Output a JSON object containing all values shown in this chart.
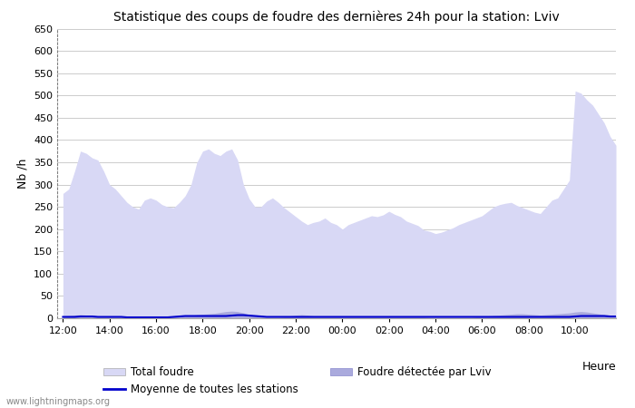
{
  "title": "Statistique des coups de foudre des dernières 24h pour la station: Lviv",
  "ylabel": "Nb /h",
  "xlabel": "Heure",
  "ylim": [
    0,
    650
  ],
  "yticks": [
    0,
    50,
    100,
    150,
    200,
    250,
    300,
    350,
    400,
    450,
    500,
    550,
    600,
    650
  ],
  "xtick_labels": [
    "12:00",
    "14:00",
    "16:00",
    "18:00",
    "20:00",
    "22:00",
    "00:00",
    "02:00",
    "04:00",
    "06:00",
    "08:00",
    "10:00"
  ],
  "bg_color": "#ffffff",
  "plot_bg_color": "#ffffff",
  "grid_color": "#cccccc",
  "total_foudre_color": "#d8d8f5",
  "lviv_color": "#aaaadd",
  "moyenne_color": "#0000cc",
  "watermark": "www.lightningmaps.org",
  "total_foudre_y": [
    280,
    290,
    330,
    375,
    370,
    360,
    355,
    330,
    300,
    290,
    275,
    260,
    250,
    245,
    265,
    270,
    265,
    255,
    250,
    248,
    260,
    275,
    300,
    350,
    375,
    380,
    370,
    365,
    375,
    380,
    355,
    300,
    268,
    250,
    250,
    263,
    270,
    260,
    248,
    238,
    228,
    218,
    210,
    215,
    218,
    225,
    215,
    210,
    200,
    210,
    215,
    220,
    225,
    230,
    228,
    232,
    240,
    233,
    228,
    218,
    213,
    208,
    198,
    195,
    190,
    193,
    198,
    203,
    210,
    215,
    220,
    225,
    230,
    240,
    250,
    255,
    258,
    260,
    253,
    248,
    243,
    238,
    235,
    250,
    265,
    270,
    290,
    310,
    510,
    505,
    490,
    478,
    458,
    438,
    408,
    388
  ],
  "lviv_y": [
    5,
    6,
    7,
    8,
    7,
    6,
    5,
    4,
    3,
    3,
    3,
    2,
    2,
    2,
    2,
    3,
    3,
    2,
    2,
    3,
    4,
    5,
    6,
    8,
    9,
    10,
    11,
    13,
    15,
    16,
    15,
    12,
    8,
    5,
    3,
    2,
    2,
    2,
    3,
    5,
    7,
    8,
    7,
    5,
    4,
    3,
    3,
    3,
    3,
    3,
    3,
    4,
    4,
    4,
    4,
    4,
    4,
    4,
    3,
    3,
    3,
    3,
    3,
    2,
    2,
    2,
    2,
    2,
    2,
    2,
    2,
    3,
    4,
    5,
    6,
    7,
    8,
    9,
    10,
    10,
    9,
    8,
    7,
    8,
    9,
    10,
    11,
    12,
    14,
    15,
    14,
    12,
    10,
    8,
    7,
    5
  ],
  "moyenne_y": [
    3,
    3,
    3,
    4,
    4,
    4,
    3,
    3,
    3,
    3,
    3,
    2,
    2,
    2,
    2,
    2,
    2,
    2,
    2,
    3,
    4,
    5,
    5,
    5,
    5,
    5,
    5,
    5,
    5,
    6,
    7,
    7,
    6,
    5,
    4,
    3,
    3,
    3,
    3,
    3,
    3,
    3,
    3,
    3,
    3,
    3,
    3,
    3,
    3,
    3,
    3,
    3,
    3,
    3,
    3,
    3,
    3,
    3,
    3,
    3,
    3,
    3,
    3,
    3,
    3,
    3,
    3,
    3,
    3,
    3,
    3,
    3,
    3,
    3,
    3,
    3,
    3,
    3,
    3,
    3,
    3,
    3,
    3,
    3,
    3,
    3,
    3,
    3,
    4,
    5,
    5,
    5,
    5,
    5,
    4,
    4
  ]
}
